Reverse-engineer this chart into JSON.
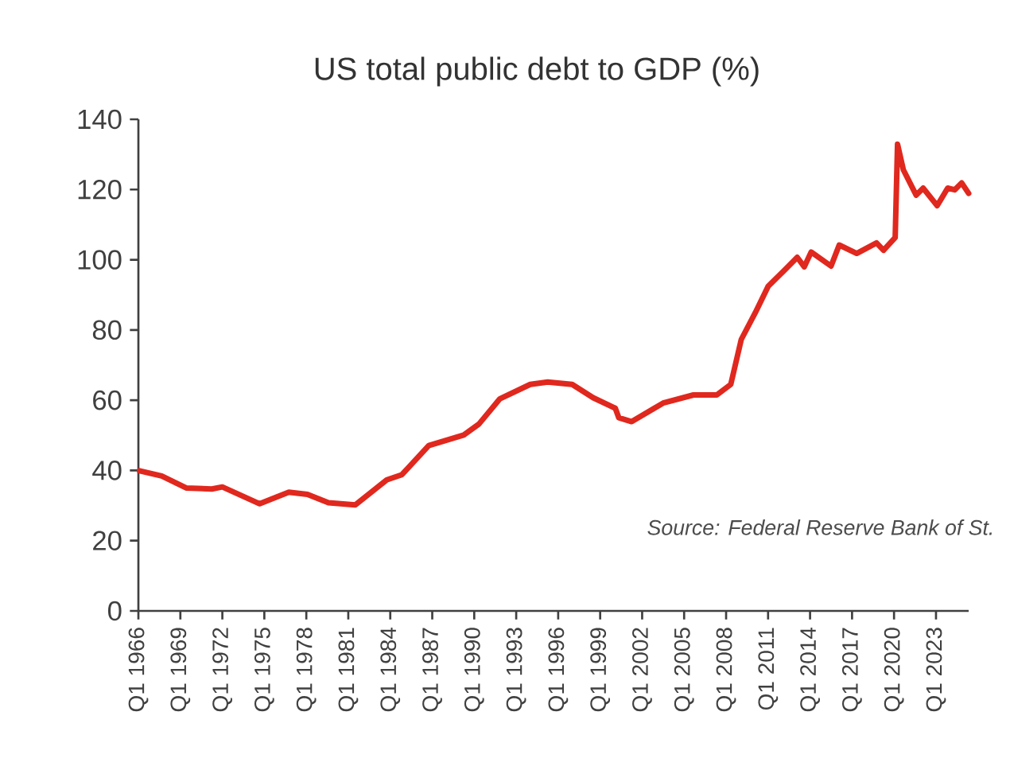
{
  "chart_data": {
    "type": "line",
    "title": "US total public debt to GDP (%)",
    "x": [
      "1966-02",
      "1967-09",
      "1969-06",
      "1971-04",
      "1972-01",
      "1974-09",
      "1976-10",
      "1978-02",
      "1979-08",
      "1981-07",
      "1983-10",
      "1984-11",
      "1986-10",
      "1989-04",
      "1990-05",
      "1991-11",
      "1994-01",
      "1995-04",
      "1997-01",
      "1998-07",
      "2000-02",
      "2000-05",
      "2001-04",
      "2003-07",
      "2005-09",
      "2007-05",
      "2008-05",
      "2009-02",
      "2010-02",
      "2011-01",
      "2012-03",
      "2013-02",
      "2013-08",
      "2014-02",
      "2015-07",
      "2016-02",
      "2017-05",
      "2018-10",
      "2019-04",
      "2020-02",
      "2020-04",
      "2020-09",
      "2021-08",
      "2022-02",
      "2023-02",
      "2023-11",
      "2024-05",
      "2024-11",
      "2025-05"
    ],
    "series": [
      {
        "color": "#e0281e",
        "values": [
          39.9,
          38.4,
          35.0,
          34.7,
          35.3,
          30.5,
          33.8,
          33.2,
          30.8,
          30.2,
          37.3,
          38.8,
          47.1,
          50.1,
          53.2,
          60.4,
          64.5,
          65.2,
          64.5,
          60.7,
          57.7,
          55.0,
          53.9,
          59.2,
          61.5,
          61.5,
          64.5,
          77.3,
          84.9,
          92.4,
          97.0,
          100.7,
          98.0,
          102.2,
          98.2,
          104.2,
          101.8,
          104.8,
          102.7,
          106.3,
          132.9,
          125.6,
          118.4,
          120.4,
          115.4,
          120.4,
          119.9,
          121.9,
          118.9
        ]
      }
    ],
    "xlim": [
      "1966-01",
      "2025-05"
    ],
    "xticks": [
      {
        "value": "1966-01",
        "label": "Q1 1966"
      },
      {
        "value": "1969-01",
        "label": "Q1 1969"
      },
      {
        "value": "1972-01",
        "label": "Q1 1972"
      },
      {
        "value": "1975-01",
        "label": "Q1 1975"
      },
      {
        "value": "1978-01",
        "label": "Q1 1978"
      },
      {
        "value": "1981-01",
        "label": "Q1 1981"
      },
      {
        "value": "1984-01",
        "label": "Q1 1984"
      },
      {
        "value": "1987-01",
        "label": "Q1 1987"
      },
      {
        "value": "1990-01",
        "label": "Q1 1990"
      },
      {
        "value": "1993-01",
        "label": "Q1 1993"
      },
      {
        "value": "1996-01",
        "label": "Q1 1996"
      },
      {
        "value": "1999-01",
        "label": "Q1 1999"
      },
      {
        "value": "2002-01",
        "label": "Q1 2002"
      },
      {
        "value": "2005-01",
        "label": "Q1 2005"
      },
      {
        "value": "2008-01",
        "label": "Q1 2008"
      },
      {
        "value": "2011-01",
        "label": "Q1 2011"
      },
      {
        "value": "2014-01",
        "label": "Q1 2014"
      },
      {
        "value": "2017-01",
        "label": "Q1 2017"
      },
      {
        "value": "2020-01",
        "label": "Q1 2020"
      },
      {
        "value": "2023-01",
        "label": "Q1 2023"
      }
    ],
    "ylim": [
      0,
      140
    ],
    "yticks": [
      0,
      20,
      40,
      60,
      80,
      100,
      120,
      140
    ],
    "annotations": [
      "Source: Federal Reserve Bank of St."
    ]
  }
}
